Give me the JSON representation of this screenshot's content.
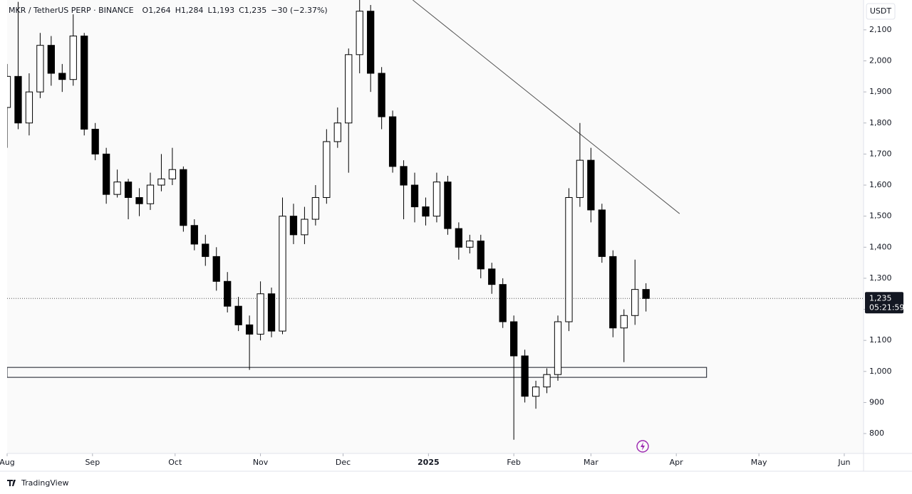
{
  "chart_data": {
    "type": "candlestick",
    "header": [
      "MKR / TetherUS PERP · BINANCE",
      "O1,264",
      "H1,284",
      "L1,193",
      "C1,235",
      "−30 (−2.37%)"
    ],
    "currency": "USDT",
    "brand": "TradingView",
    "x": [
      0,
      4,
      8,
      12,
      16,
      20,
      24,
      28,
      32,
      36,
      40,
      44,
      48,
      52,
      56,
      60,
      64,
      68,
      72,
      76,
      80,
      84,
      88,
      92,
      96,
      100,
      104,
      108,
      112,
      116,
      120,
      124,
      128,
      132,
      136,
      140,
      144,
      148,
      152,
      156,
      160,
      164,
      168,
      172,
      176,
      180,
      184,
      188,
      192,
      196,
      200,
      204,
      208,
      212,
      216,
      220,
      224,
      228,
      232
    ],
    "open": [
      1850,
      1950,
      1800,
      1900,
      2050,
      1960,
      1940,
      2080,
      1780,
      1700,
      1570,
      1610,
      1560,
      1540,
      1600,
      1620,
      1650,
      1470,
      1410,
      1370,
      1290,
      1210,
      1150,
      1120,
      1250,
      1130,
      1500,
      1440,
      1490,
      1560,
      1740,
      1800,
      2020,
      2160,
      1960,
      1820,
      1660,
      1600,
      1530,
      1500,
      1610,
      1460,
      1400,
      1420,
      1330,
      1280,
      1160,
      1050,
      920,
      950,
      990,
      1160,
      1560,
      1680,
      1520,
      1370,
      1140,
      1180,
      1264
    ],
    "high": [
      1990,
      2190,
      1960,
      2090,
      2080,
      1990,
      2150,
      2090,
      1800,
      1720,
      1650,
      1620,
      1590,
      1640,
      1700,
      1720,
      1660,
      1490,
      1440,
      1400,
      1320,
      1240,
      1180,
      1290,
      1270,
      1560,
      1540,
      1530,
      1600,
      1780,
      1850,
      2040,
      2200,
      2180,
      1980,
      1840,
      1680,
      1640,
      1560,
      1640,
      1630,
      1480,
      1440,
      1440,
      1350,
      1300,
      1180,
      1070,
      970,
      1010,
      1180,
      1590,
      1800,
      1720,
      1540,
      1390,
      1200,
      1360,
      1284
    ],
    "low": [
      1720,
      1780,
      1760,
      1880,
      1920,
      1900,
      1920,
      1760,
      1680,
      1540,
      1560,
      1490,
      1500,
      1520,
      1580,
      1600,
      1450,
      1390,
      1340,
      1260,
      1190,
      1130,
      1005,
      1100,
      1110,
      1120,
      1410,
      1410,
      1470,
      1540,
      1720,
      1640,
      1960,
      1900,
      1780,
      1640,
      1490,
      1480,
      1470,
      1480,
      1440,
      1360,
      1380,
      1300,
      1250,
      1140,
      780,
      900,
      880,
      930,
      970,
      1130,
      1530,
      1480,
      1350,
      1110,
      1030,
      1150,
      1193
    ],
    "close": [
      1950,
      1800,
      1900,
      2050,
      1960,
      1940,
      2080,
      1780,
      1700,
      1570,
      1610,
      1560,
      1540,
      1600,
      1620,
      1650,
      1470,
      1410,
      1370,
      1290,
      1210,
      1150,
      1120,
      1250,
      1130,
      1500,
      1440,
      1490,
      1560,
      1740,
      1800,
      2020,
      2160,
      1960,
      1820,
      1660,
      1600,
      1530,
      1500,
      1610,
      1460,
      1400,
      1420,
      1330,
      1280,
      1160,
      1050,
      920,
      950,
      990,
      1160,
      1560,
      1680,
      1520,
      1370,
      1140,
      1180,
      1264,
      1235
    ],
    "up_color": "#ffffff",
    "down_color": "#000000",
    "xlim": [
      0,
      311
    ],
    "ylim": [
      736,
      2196
    ],
    "xticks": [
      {
        "value": 0,
        "label": "Aug"
      },
      {
        "value": 31,
        "label": "Sep"
      },
      {
        "value": 61,
        "label": "Oct"
      },
      {
        "value": 92,
        "label": "Nov"
      },
      {
        "value": 122,
        "label": "Dec"
      },
      {
        "value": 153,
        "label": "2025"
      },
      {
        "value": 184,
        "label": "Feb"
      },
      {
        "value": 212,
        "label": "Mar"
      },
      {
        "value": 243,
        "label": "Apr"
      },
      {
        "value": 273,
        "label": "May"
      },
      {
        "value": 304,
        "label": "Jun"
      }
    ],
    "yticks": [
      800,
      900,
      {
        "value": 1000,
        "label": "1,000"
      },
      {
        "value": 1100,
        "label": "1,100"
      },
      {
        "value": 1200,
        "label": "1,200"
      },
      {
        "value": 1300,
        "label": "1,300"
      },
      {
        "value": 1400,
        "label": "1,400"
      },
      {
        "value": 1500,
        "label": "1,500"
      },
      {
        "value": 1600,
        "label": "1,600"
      },
      {
        "value": 1700,
        "label": "1,700"
      },
      {
        "value": 1800,
        "label": "1,800"
      },
      {
        "value": 1900,
        "label": "1,900"
      },
      {
        "value": 2000,
        "label": "2,000"
      },
      {
        "value": 2100,
        "label": "2,100"
      }
    ],
    "grid": false,
    "last_price": {
      "value": 1235,
      "label": "1,235"
    },
    "countdown": "05:21:59",
    "trendline": {
      "x": [
        147.3,
        244.2
      ],
      "y": [
        2196,
        1508
      ]
    },
    "zone": {
      "x": [
        0,
        254
      ],
      "y": [
        981,
        1013
      ]
    }
  }
}
